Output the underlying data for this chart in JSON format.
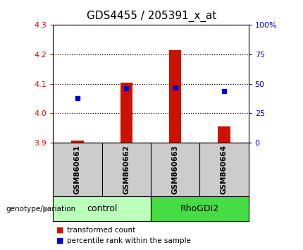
{
  "title": "GDS4455 / 205391_x_at",
  "samples": [
    "GSM860661",
    "GSM860662",
    "GSM860663",
    "GSM860664"
  ],
  "red_values": [
    3.906,
    4.105,
    4.215,
    3.955
  ],
  "blue_percentiles": [
    38,
    46,
    47,
    44
  ],
  "ylim_left": [
    3.9,
    4.3
  ],
  "ylim_right": [
    0,
    100
  ],
  "yticks_left": [
    3.9,
    4.0,
    4.1,
    4.2,
    4.3
  ],
  "yticks_right": [
    0,
    25,
    50,
    75,
    100
  ],
  "ytick_labels_right": [
    "0",
    "25",
    "50",
    "75",
    "100%"
  ],
  "groups": [
    {
      "name": "control",
      "color": "#bbffbb"
    },
    {
      "name": "RhoGDI2",
      "color": "#44dd44"
    }
  ],
  "bar_color": "#cc1100",
  "dot_color": "#0000cc",
  "bar_bottom": 3.9,
  "bar_width": 0.25,
  "legend_labels": [
    "transformed count",
    "percentile rank within the sample"
  ],
  "legend_colors": [
    "#cc1100",
    "#0000cc"
  ],
  "group_label": "genotype/variation",
  "background_color": "#ffffff",
  "label_area_color": "#cccccc",
  "title_fontsize": 11
}
